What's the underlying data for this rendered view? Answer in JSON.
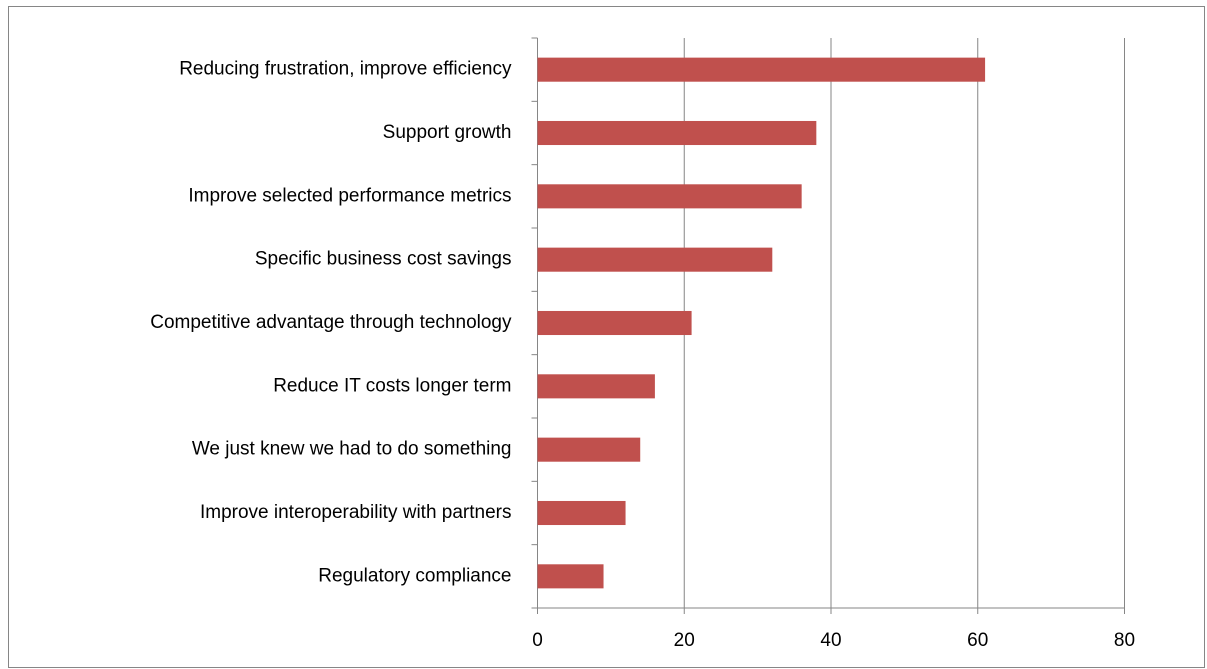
{
  "chart_data": {
    "type": "bar",
    "orientation": "horizontal",
    "categories": [
      "Reducing frustration, improve efficiency",
      "Support growth",
      "Improve selected performance metrics",
      "Specific business cost savings",
      "Competitive advantage through technology",
      "Reduce IT costs longer term",
      "We just knew we had to do something",
      "Improve interoperability with partners",
      "Regulatory compliance"
    ],
    "values": [
      61,
      38,
      36,
      32,
      21,
      16,
      14,
      12,
      9
    ],
    "color": "#c0504d",
    "xlim": [
      0,
      80
    ],
    "xticks": [
      0,
      20,
      40,
      60,
      80
    ],
    "grid": true
  }
}
